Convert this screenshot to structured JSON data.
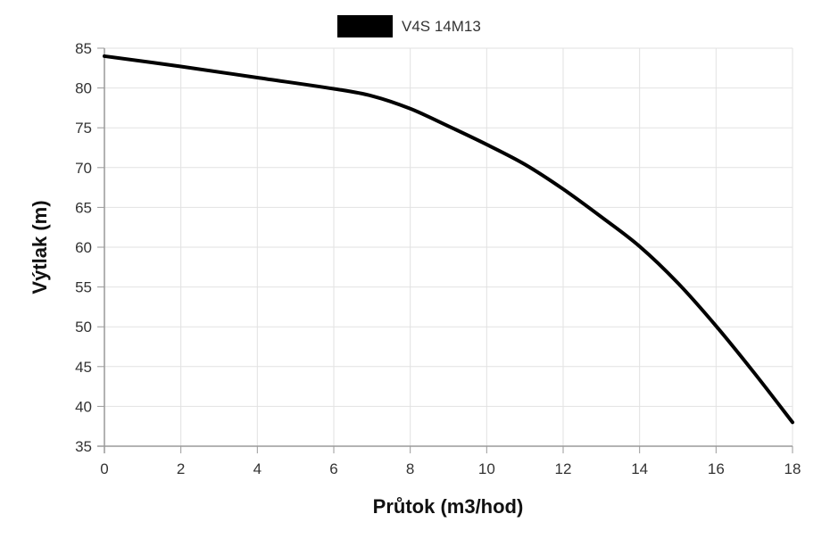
{
  "chart_data": {
    "type": "line",
    "xlabel": "Průtok (m3/hod)",
    "ylabel": "Výtlak (m)",
    "xlim": [
      0,
      18
    ],
    "ylim": [
      35,
      85
    ],
    "x_ticks": [
      0,
      2,
      4,
      6,
      8,
      10,
      12,
      14,
      16,
      18
    ],
    "y_ticks": [
      35,
      40,
      45,
      50,
      55,
      60,
      65,
      70,
      75,
      80,
      85
    ],
    "grid": true,
    "legend_position": "top-center",
    "series": [
      {
        "name": "V4S 14M13",
        "color": "#000000",
        "x": [
          0,
          2,
          4,
          6,
          7,
          8,
          9,
          10,
          11,
          12,
          13,
          14,
          15,
          16,
          17,
          18
        ],
        "y": [
          84,
          82.7,
          81.3,
          79.9,
          79,
          77.4,
          75.2,
          72.9,
          70.4,
          67.3,
          63.8,
          60.1,
          55.5,
          50.1,
          44.2,
          38
        ]
      }
    ]
  }
}
